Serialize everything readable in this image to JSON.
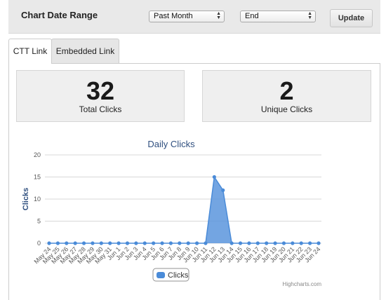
{
  "header": {
    "title": "Chart Date Range",
    "range_select": "Past Month",
    "end_select": "End",
    "update_label": "Update"
  },
  "tabs": [
    "CTT Link",
    "Embedded Link"
  ],
  "stats": {
    "total": {
      "value": "32",
      "label": "Total Clicks"
    },
    "unique": {
      "value": "2",
      "label": "Unique Clicks"
    }
  },
  "credit": "Highcharts.com",
  "colors": {
    "series": "#4a8bd8",
    "series_fill": "#5b95dd",
    "axis_title": "#2f4f7f"
  },
  "chart_data": {
    "type": "area",
    "title": "Daily Clicks",
    "ylabel": "Clicks",
    "xlabel": "",
    "ylim": [
      0,
      20
    ],
    "yticks": [
      0,
      5,
      10,
      15,
      20
    ],
    "grid": true,
    "legend": "bottom-center",
    "categories": [
      "May 24",
      "May 25",
      "May 26",
      "May 27",
      "May 28",
      "May 29",
      "May 30",
      "May 31",
      "Jun 1",
      "Jun 2",
      "Jun 3",
      "Jun 4",
      "Jun 5",
      "Jun 6",
      "Jun 7",
      "Jun 8",
      "Jun 9",
      "Jun 10",
      "Jun 11",
      "Jun 12",
      "Jun 13",
      "Jun 14",
      "Jun 15",
      "Jun 16",
      "Jun 17",
      "Jun 18",
      "Jun 19",
      "Jun 20",
      "Jun 21",
      "Jun 22",
      "Jun 23",
      "Jun 24"
    ],
    "series": [
      {
        "name": "Clicks",
        "values": [
          0,
          0,
          0,
          0,
          0,
          0,
          0,
          0,
          0,
          0,
          0,
          0,
          0,
          0,
          0,
          0,
          0,
          0,
          0,
          15,
          12,
          0,
          0,
          0,
          0,
          0,
          0,
          0,
          0,
          0,
          0,
          0
        ]
      }
    ]
  }
}
